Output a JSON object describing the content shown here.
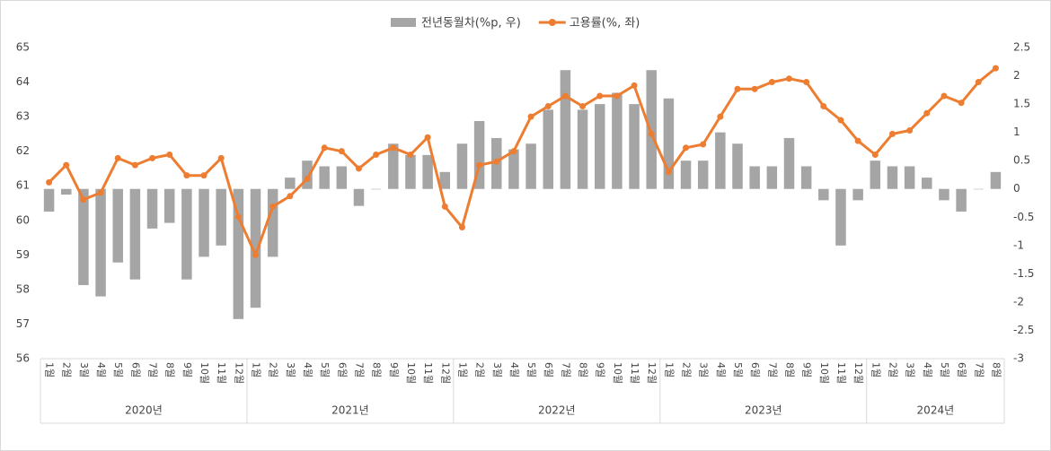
{
  "chart_data": {
    "type": "combo",
    "groups": [
      {
        "label": "2020년",
        "categories": [
          "1월",
          "2월",
          "3월",
          "4월",
          "5월",
          "6월",
          "7월",
          "8월",
          "9월",
          "10월",
          "11월",
          "12월"
        ]
      },
      {
        "label": "2021년",
        "categories": [
          "1월",
          "2월",
          "3월",
          "4월",
          "5월",
          "6월",
          "7월",
          "8월",
          "9월",
          "10월",
          "11월",
          "12월"
        ]
      },
      {
        "label": "2022년",
        "categories": [
          "1월",
          "2월",
          "3월",
          "4월",
          "5월",
          "6월",
          "7월",
          "8월",
          "9월",
          "10월",
          "11월",
          "12월"
        ]
      },
      {
        "label": "2023년",
        "categories": [
          "1월",
          "2월",
          "3월",
          "4월",
          "5월",
          "6월",
          "7월",
          "8월",
          "9월",
          "10월",
          "11월",
          "12월"
        ]
      },
      {
        "label": "2024년",
        "categories": [
          "1월",
          "2월",
          "3월",
          "4월",
          "5월",
          "6월",
          "7월",
          "8월"
        ]
      }
    ],
    "series": [
      {
        "name": "전년동월차(%p, 우)",
        "type": "bar",
        "axis": "y2",
        "color": "#a5a5a5",
        "values": [
          -0.4,
          -0.1,
          -1.7,
          -1.9,
          -1.3,
          -1.6,
          -0.7,
          -0.6,
          -1.6,
          -1.2,
          -1.0,
          -2.3,
          -2.1,
          -1.2,
          0.2,
          0.5,
          0.4,
          0.4,
          -0.3,
          0.0,
          0.8,
          0.6,
          0.6,
          0.3,
          0.8,
          1.2,
          0.9,
          0.7,
          0.8,
          1.4,
          2.1,
          1.4,
          1.5,
          1.7,
          1.5,
          2.1,
          1.6,
          0.5,
          0.5,
          1.0,
          0.8,
          0.4,
          0.4,
          0.9,
          0.4,
          -0.2,
          -1.0,
          -0.2,
          0.5,
          0.4,
          0.4,
          0.2,
          -0.2,
          -0.4,
          0.0,
          0.3
        ]
      },
      {
        "name": "고용률(%, 좌)",
        "type": "line",
        "axis": "y",
        "color": "#ed7d31",
        "values": [
          61.1,
          61.6,
          60.6,
          60.8,
          61.8,
          61.6,
          61.8,
          61.9,
          61.3,
          61.3,
          61.8,
          60.1,
          59.0,
          60.4,
          60.7,
          61.2,
          62.1,
          62.0,
          61.5,
          61.9,
          62.1,
          61.9,
          62.4,
          60.4,
          59.8,
          61.6,
          61.7,
          62.0,
          63.0,
          63.3,
          63.6,
          63.3,
          63.6,
          63.6,
          63.9,
          62.5,
          61.4,
          62.1,
          62.2,
          63.0,
          63.8,
          63.8,
          64.0,
          64.1,
          64.0,
          63.3,
          62.9,
          62.3,
          61.9,
          62.5,
          62.6,
          63.1,
          63.6,
          63.4,
          64.0,
          64.4
        ]
      }
    ],
    "ylim": [
      56,
      65
    ],
    "yticks": [
      56,
      57,
      58,
      59,
      60,
      61,
      62,
      63,
      64,
      65
    ],
    "y2lim": [
      -3,
      2.5
    ],
    "y2ticks": [
      -3,
      -2.5,
      -2,
      -1.5,
      -1,
      -0.5,
      0,
      0.5,
      1,
      1.5,
      2,
      2.5
    ],
    "legend": "top"
  }
}
